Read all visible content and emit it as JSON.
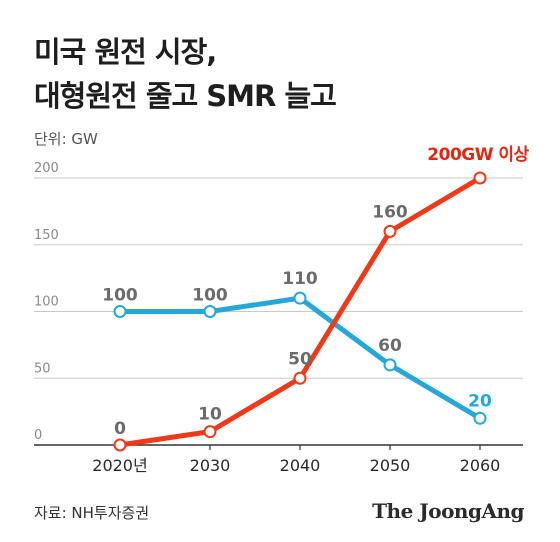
{
  "title_lines": [
    "미국 원전 시장,",
    "대형원전 줄고 SMR 늘고"
  ],
  "unit_label": "단위: GW",
  "source": "자료: NH투자증권",
  "logo": "The JoongAng",
  "chart_data": {
    "type": "line",
    "x": [
      "2020년",
      "2030",
      "2040",
      "2050",
      "2060"
    ],
    "ylim": [
      0,
      200
    ],
    "yticks": [
      0,
      50,
      100,
      150,
      200
    ],
    "grid": true,
    "series": [
      {
        "color": "#25a8d8",
        "values": [
          100,
          100,
          110,
          60,
          20
        ],
        "labels": [
          "100",
          "100",
          "110",
          "60",
          "20"
        ],
        "label_color": "#6b6b6b",
        "last_label_color": "#25a8d8"
      },
      {
        "color": "#ee3a18",
        "values": [
          0,
          10,
          50,
          160,
          200
        ],
        "labels": [
          "0",
          "10",
          "50",
          "160",
          ""
        ],
        "label_color": "#6b6b6b"
      }
    ],
    "annotation": {
      "text": "200GW 이상",
      "color": "#e22710"
    }
  }
}
